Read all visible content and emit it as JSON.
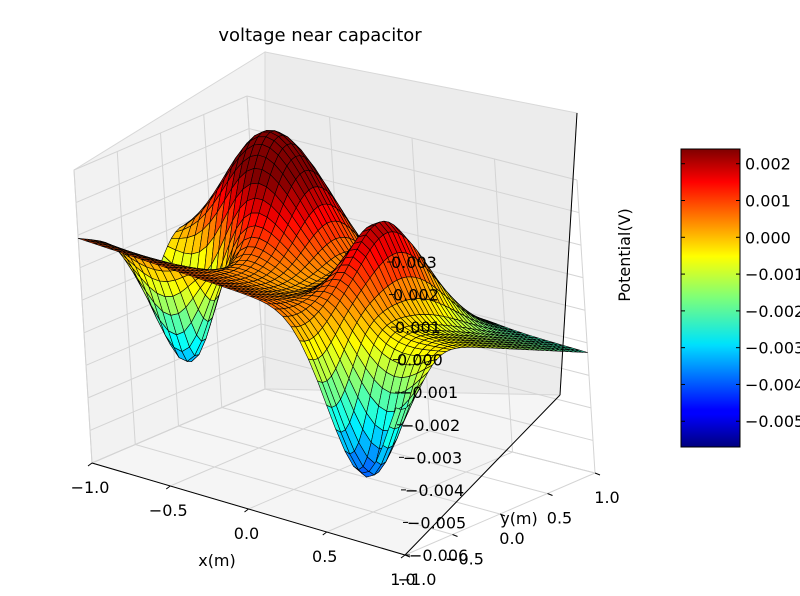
{
  "chart_data": {
    "type": "surface",
    "title": "voltage near capacitor",
    "xlabel": "x(m)",
    "ylabel": "y(m)",
    "zlabel": "Potential(V)",
    "xlim": [
      -1.0,
      1.0
    ],
    "ylim": [
      -1.0,
      1.0
    ],
    "zlim": [
      -0.006,
      0.003
    ],
    "x_ticks": [
      "−1.0",
      "−0.5",
      "0.0",
      "0.5",
      "1.0"
    ],
    "y_ticks": [
      "−1.0",
      "−0.5",
      "0.0",
      "0.5",
      "1.0"
    ],
    "z_ticks": [
      "−0.006",
      "−0.005",
      "−0.004",
      "−0.003",
      "−0.002",
      "−0.001",
      "0.000",
      "0.001",
      "0.002",
      "0.003"
    ],
    "colorbar": {
      "colormap": "jet",
      "range": [
        -0.0057,
        0.0024
      ],
      "ticks": [
        "−0.005",
        "−0.004",
        "−0.003",
        "−0.002",
        "−0.001",
        "0.000",
        "0.001",
        "0.002"
      ]
    },
    "grid": true,
    "features": [
      {
        "kind": "peak",
        "x": -0.45,
        "y": 0.3,
        "z": 0.0024
      },
      {
        "kind": "peak",
        "x": 0.35,
        "y": 0.05,
        "z": 0.0007
      },
      {
        "kind": "trough",
        "x": -0.75,
        "y": -0.25,
        "z": -0.0045
      },
      {
        "kind": "trough",
        "x": 0.75,
        "y": -0.95,
        "z": -0.0057
      },
      {
        "kind": "corner",
        "x": -1.0,
        "y": -1.0,
        "z": -0.0019
      },
      {
        "kind": "corner",
        "x": 1.0,
        "y": 1.0,
        "z": -0.0022
      }
    ]
  }
}
